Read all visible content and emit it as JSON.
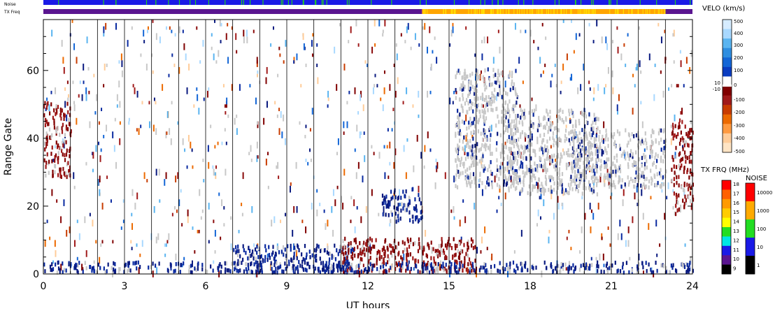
{
  "chart_data": {
    "type": "heatmap",
    "title": "",
    "xlabel": "UT hours",
    "ylabel": "Range Gate",
    "xlim": [
      0,
      24
    ],
    "ylim": [
      0,
      75
    ],
    "x_ticks": [
      "0",
      "3",
      "6",
      "9",
      "12",
      "15",
      "18",
      "21",
      "24"
    ],
    "y_ticks": [
      "0",
      "20",
      "40",
      "60"
    ],
    "strip_labels": {
      "noise": "Noise",
      "txfreq": "TX Freq"
    },
    "strips": {
      "noise": {
        "base_color": "#1a1ae6",
        "event_color": "#22cc22",
        "range": [
          0,
          24
        ]
      },
      "txfreq": [
        {
          "from": 0,
          "to": 14,
          "color": "#5a1590",
          "level": "10 MHz"
        },
        {
          "from": 14,
          "to": 23,
          "color": "#ffa500",
          "level": "15 MHz"
        },
        {
          "from": 23,
          "to": 24,
          "color": "#5a1590",
          "level": "10 MHz"
        }
      ]
    },
    "velocity_colorbar": {
      "title": "VELO (km/s)",
      "labels": [
        "500",
        "400",
        "300",
        "200",
        "100",
        "0",
        "-100",
        "-200",
        "-300",
        "-400",
        "-500"
      ],
      "near_zero_labels": [
        "10",
        "-10"
      ],
      "colors": [
        "#d6ecff",
        "#a8d8ff",
        "#5ab4f0",
        "#2f8ee0",
        "#1466d6",
        "#0a3cc0",
        "#ffffff",
        "#800000",
        "#a01a1a",
        "#c83c00",
        "#ec6a00",
        "#ff9a40",
        "#ffcc99",
        "#ffe4c4"
      ]
    },
    "txfreq_colorbar": {
      "title": "TX FRQ (MHz)",
      "labels": [
        "18",
        "17",
        "16",
        "15",
        "14",
        "13",
        "12",
        "11",
        "10",
        "9"
      ],
      "colors": [
        "#ff0000",
        "#ff6000",
        "#ff9a00",
        "#ffcc00",
        "#ffff00",
        "#22dd22",
        "#00e5e5",
        "#1a1ae6",
        "#5a1590",
        "#000000"
      ]
    },
    "noise_colorbar": {
      "title": "NOISE",
      "labels": [
        "10000",
        "1000",
        "100",
        "10",
        "1"
      ],
      "colors": [
        "#ff0000",
        "#ffaa00",
        "#22dd22",
        "#1a1ae6",
        "#000000"
      ]
    },
    "ground_scatter_color": "#c8c8c8",
    "regions": [
      {
        "kind": "negative",
        "x": [
          0,
          1.0
        ],
        "y": [
          28,
          50
        ],
        "note": "dark red patch"
      },
      {
        "kind": "ground",
        "x": [
          15.2,
          17.5
        ],
        "y": [
          25,
          60
        ]
      },
      {
        "kind": "ground",
        "x": [
          17.0,
          20.5
        ],
        "y": [
          23,
          48
        ]
      },
      {
        "kind": "ground",
        "x": [
          19.5,
          23.0
        ],
        "y": [
          25,
          42
        ]
      },
      {
        "kind": "negative",
        "x": [
          23.2,
          24
        ],
        "y": [
          17,
          45
        ]
      },
      {
        "kind": "positive",
        "x": [
          12.5,
          14.0
        ],
        "y": [
          15,
          25
        ]
      },
      {
        "kind": "positive",
        "x": [
          7.0,
          11.5
        ],
        "y": [
          0,
          8
        ]
      },
      {
        "kind": "negative",
        "x": [
          11.0,
          16.0
        ],
        "y": [
          0,
          10
        ]
      },
      {
        "kind": "positive",
        "x": [
          0,
          24
        ],
        "y": [
          0,
          3
        ]
      }
    ]
  }
}
